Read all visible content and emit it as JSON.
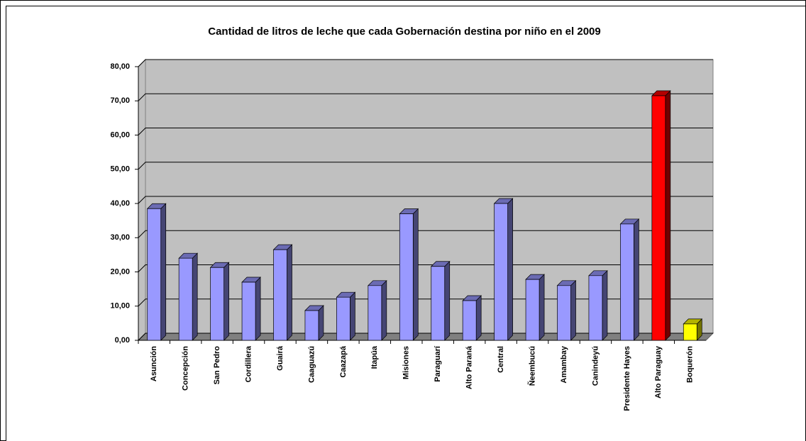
{
  "chart_data": {
    "type": "bar3d",
    "title": "Cantidad de litros de leche que cada Gobernación destina por niño en el 2009",
    "categories": [
      "Asunción",
      "Concepción",
      "San Pedro",
      "Cordillera",
      "Guairá",
      "Caaguazú",
      "Caazapá",
      "Itapúa",
      "Misiones",
      "Paraguarí",
      "Alto Paraná",
      "Central",
      "Ñeembucú",
      "Amambay",
      "Canindeyú",
      "Presidente Hayes",
      "Alto Paraguay",
      "Boquerón"
    ],
    "values": [
      38.5,
      24,
      21.3,
      17,
      26.5,
      8.7,
      12.6,
      16,
      37,
      21.6,
      11.6,
      40,
      17.8,
      16,
      18.9,
      34,
      71.5,
      4.8
    ],
    "colors": [
      "#9999ff",
      "#9999ff",
      "#9999ff",
      "#9999ff",
      "#9999ff",
      "#9999ff",
      "#9999ff",
      "#9999ff",
      "#9999ff",
      "#9999ff",
      "#9999ff",
      "#9999ff",
      "#9999ff",
      "#9999ff",
      "#9999ff",
      "#9999ff",
      "#ff0000",
      "#ffff00"
    ],
    "ylim": [
      0,
      80
    ],
    "yticks": [
      {
        "value": 0,
        "label": "0,00"
      },
      {
        "value": 10,
        "label": "10,00"
      },
      {
        "value": 20,
        "label": "20,00"
      },
      {
        "value": 30,
        "label": "30,00"
      },
      {
        "value": 40,
        "label": "40,00"
      },
      {
        "value": 50,
        "label": "50,00"
      },
      {
        "value": 60,
        "label": "60,00"
      },
      {
        "value": 70,
        "label": "70,00"
      },
      {
        "value": 80,
        "label": "80,00"
      }
    ],
    "grid": true
  }
}
